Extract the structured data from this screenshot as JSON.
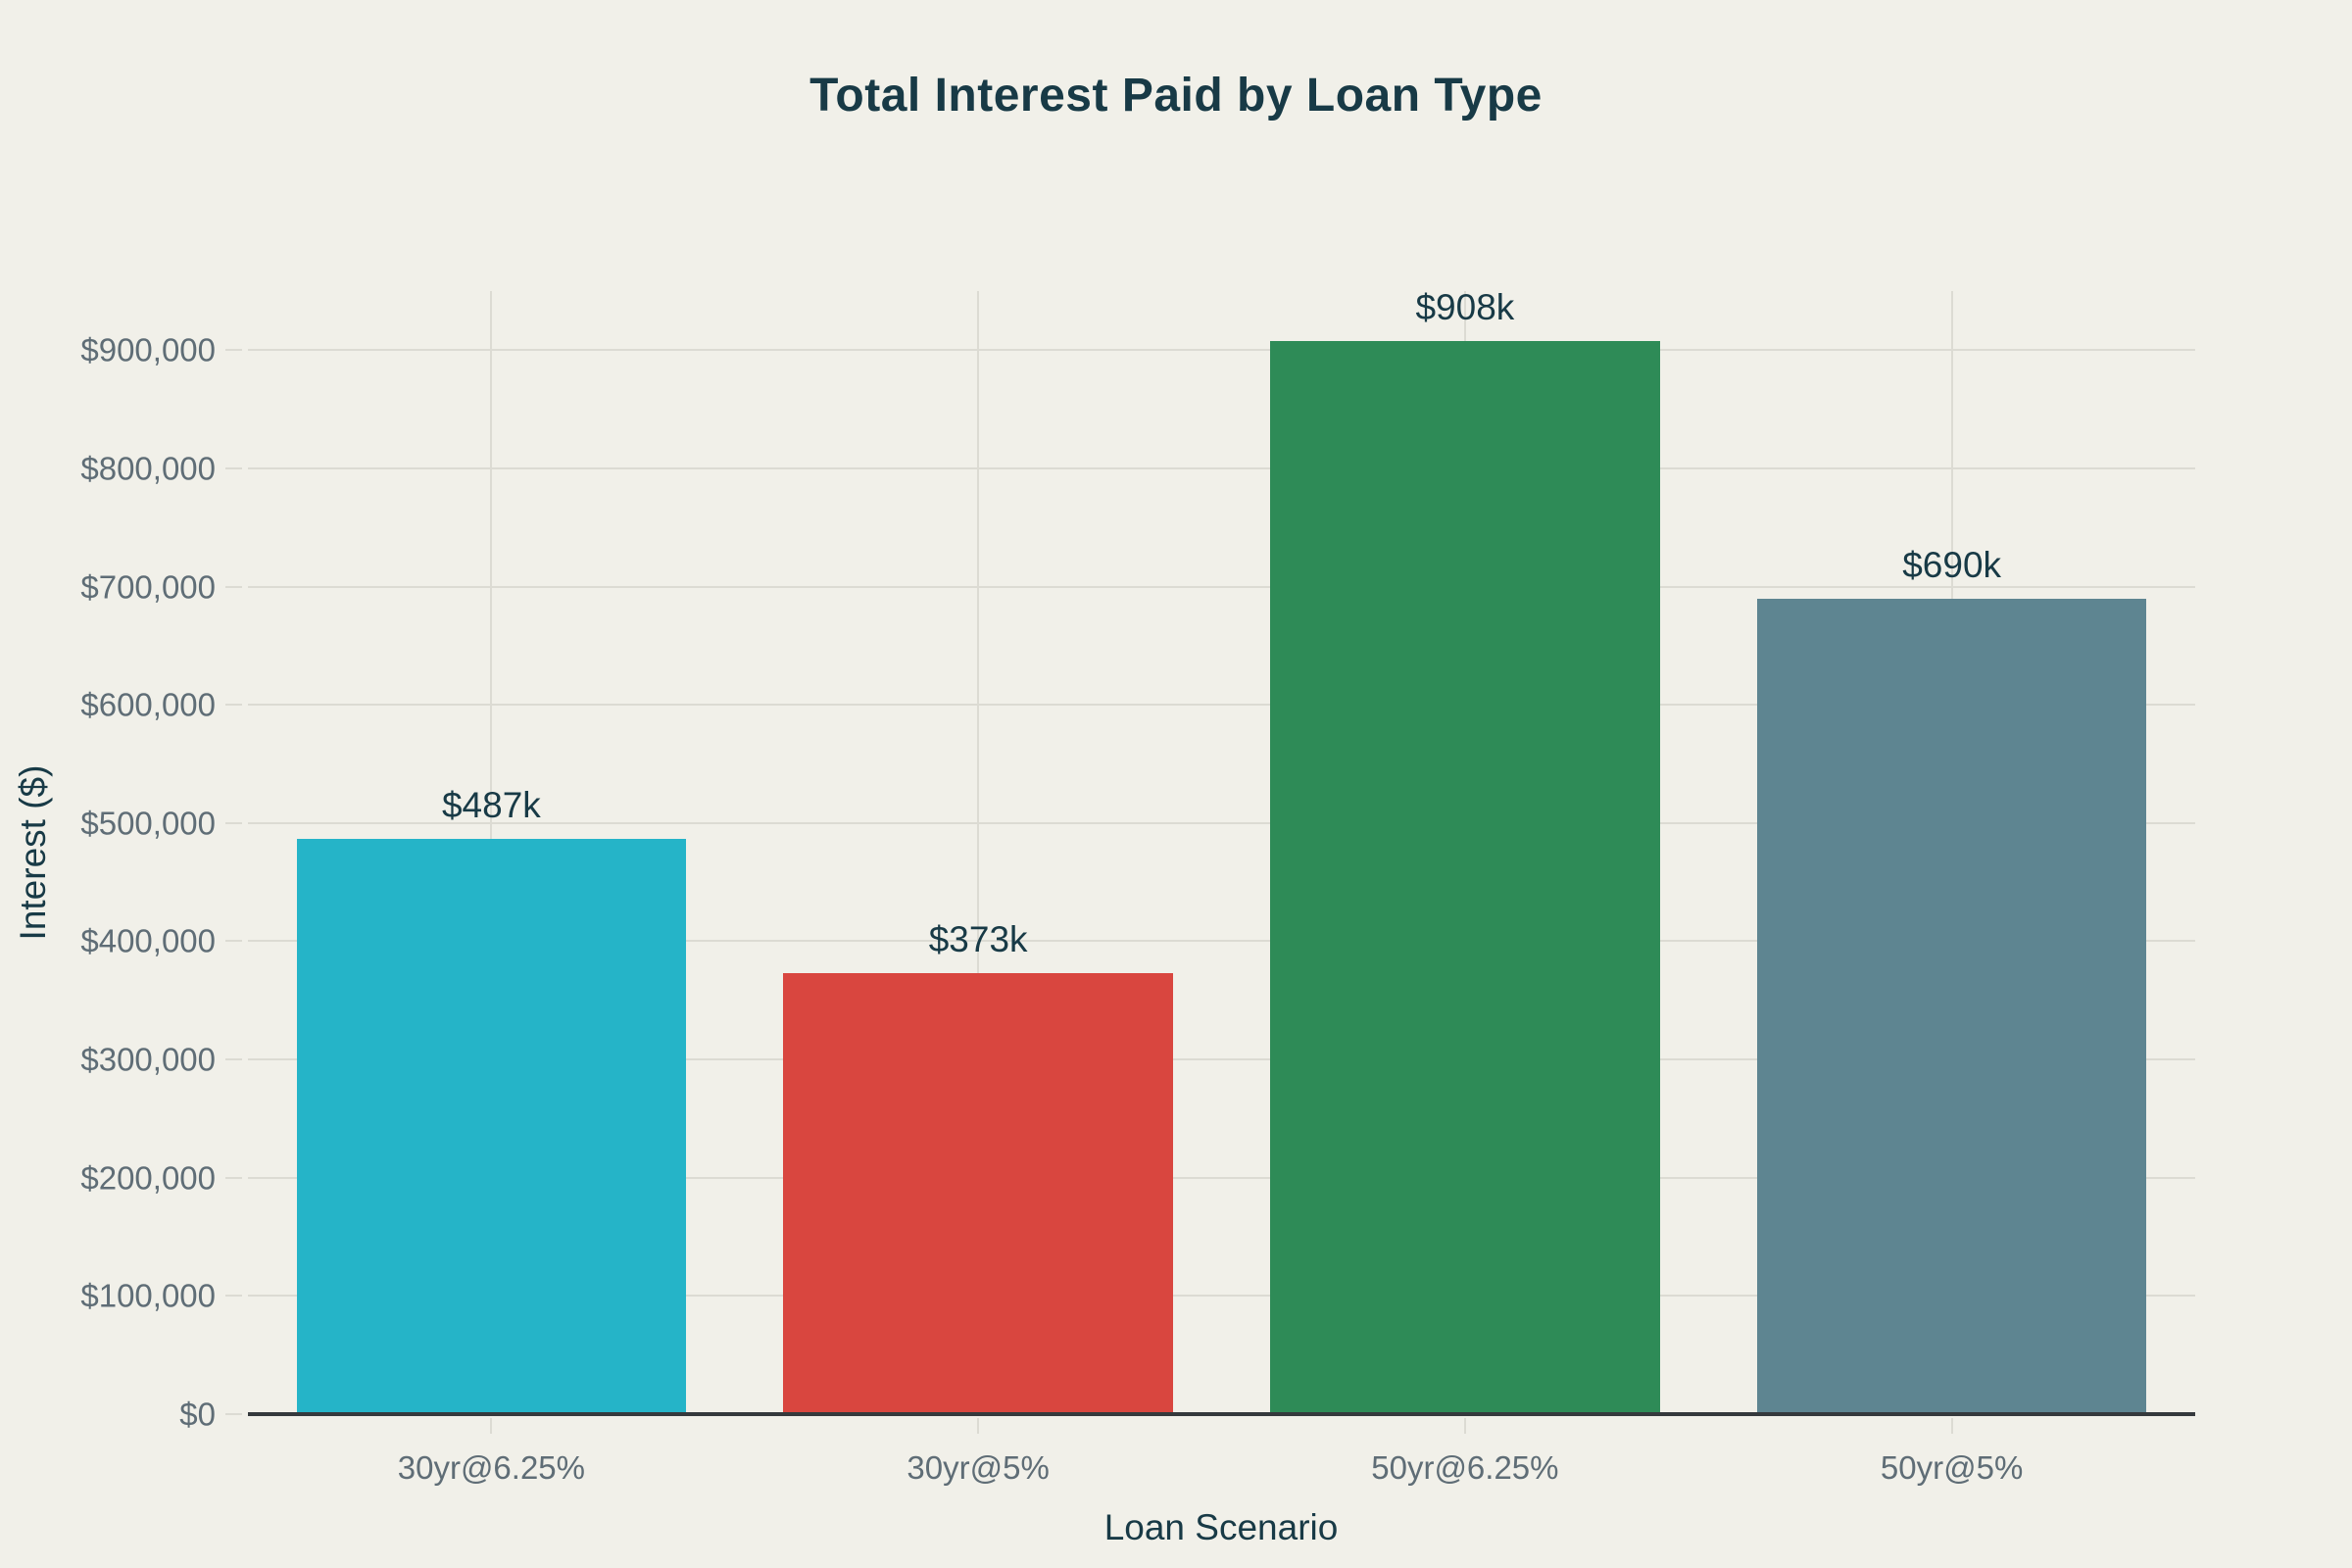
{
  "style": {
    "background": "#f1f0e9",
    "title_color": "#183a46",
    "label_color": "#183a46",
    "tick_color": "#5f6d76",
    "grid_color": "#dcdbd3",
    "axis_line_color": "#35393c"
  },
  "chart_data": {
    "type": "bar",
    "title": "Total Interest Paid by Loan Type",
    "xlabel": "Loan Scenario",
    "ylabel": "Interest ($)",
    "categories": [
      "30yr@6.25%",
      "30yr@5%",
      "50yr@6.25%",
      "50yr@5%"
    ],
    "values": [
      487000,
      373000,
      908000,
      690000
    ],
    "bar_labels": [
      "$487k",
      "$373k",
      "$908k",
      "$690k"
    ],
    "bar_colors": [
      "#25b4c8",
      "#d9463f",
      "#2e8b57",
      "#5e8591"
    ],
    "ylim": [
      0,
      950000
    ],
    "yticks": [
      0,
      100000,
      200000,
      300000,
      400000,
      500000,
      600000,
      700000,
      800000,
      900000
    ],
    "ytick_labels": [
      "$0",
      "$100,000",
      "$200,000",
      "$300,000",
      "$400,000",
      "$500,000",
      "$600,000",
      "$700,000",
      "$800,000",
      "$900,000"
    ],
    "grid": true,
    "legend": null,
    "bar_width_fraction": 0.8
  }
}
